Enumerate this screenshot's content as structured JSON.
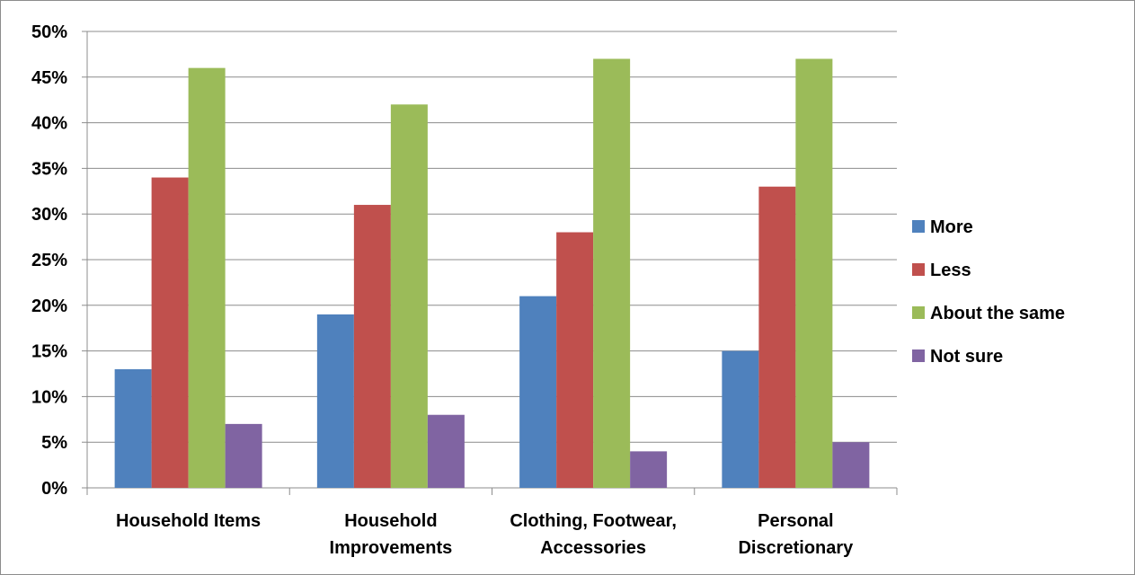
{
  "chart_data": {
    "type": "bar",
    "title": "",
    "xlabel": "",
    "ylabel": "",
    "categories": [
      [
        "Household Items"
      ],
      [
        "Household",
        "Improvements"
      ],
      [
        "Clothing, Footwear,",
        "Accessories"
      ],
      [
        "Personal",
        "Discretionary"
      ]
    ],
    "ylim": [
      0,
      50
    ],
    "yticks": [
      0,
      5,
      10,
      15,
      20,
      25,
      30,
      35,
      40,
      45,
      50
    ],
    "ytick_labels": [
      "0%",
      "5%",
      "10%",
      "15%",
      "20%",
      "25%",
      "30%",
      "35%",
      "40%",
      "45%",
      "50%"
    ],
    "grid": true,
    "legend_position": "right",
    "series": [
      {
        "name": "More",
        "color": "#4F81BD",
        "values": [
          13,
          19,
          21,
          15
        ]
      },
      {
        "name": "Less",
        "color": "#C0504D",
        "values": [
          34,
          31,
          28,
          33
        ]
      },
      {
        "name": "About the same",
        "color": "#9BBB59",
        "values": [
          46,
          42,
          47,
          47
        ]
      },
      {
        "name": "Not sure",
        "color": "#8064A2",
        "values": [
          7,
          8,
          4,
          5
        ]
      }
    ]
  }
}
